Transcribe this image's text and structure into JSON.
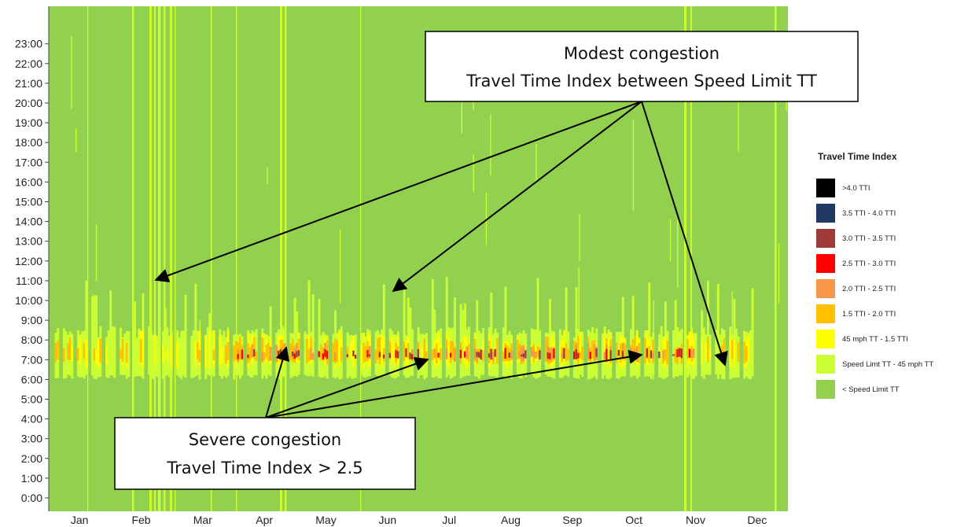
{
  "chart_data": {
    "type": "heatmap",
    "title": "",
    "xlabel": "",
    "ylabel": "",
    "x_categories": [
      "Jan",
      "Feb",
      "Mar",
      "Apr",
      "May",
      "Jun",
      "Jul",
      "Aug",
      "Sep",
      "Oct",
      "Nov",
      "Dec"
    ],
    "y_categories": [
      "0:00",
      "1:00",
      "2:00",
      "3:00",
      "4:00",
      "5:00",
      "6:00",
      "7:00",
      "8:00",
      "9:00",
      "10:00",
      "11:00",
      "12:00",
      "13:00",
      "14:00",
      "15:00",
      "16:00",
      "17:00",
      "18:00",
      "19:00",
      "20:00",
      "21:00",
      "22:00",
      "23:00"
    ],
    "legend": {
      "title": "Travel Time Index",
      "placement": "right",
      "items": [
        {
          "label": ">4.0 TTI",
          "color": "#000000"
        },
        {
          "label": "3.5 TTI - 4.0 TTI",
          "color": "#1f3864"
        },
        {
          "label": "3.0 TTI - 3.5 TTI",
          "color": "#9e3a38"
        },
        {
          "label": "2.5 TTI - 3.0 TTI",
          "color": "#ff0000"
        },
        {
          "label": "2.0 TTI - 2.5 TTI",
          "color": "#f79646"
        },
        {
          "label": "1.5 TTI - 2.0 TTI",
          "color": "#ffc000"
        },
        {
          "label": "45 mph TT - 1.5 TTI",
          "color": "#ffff00"
        },
        {
          "label": "Speed Limt TT - 45 mph TT",
          "color": "#ccff33"
        },
        {
          "label": "< Speed Limit TT",
          "color": "#92d050"
        }
      ]
    },
    "annotations": [
      {
        "line1": "Modest congestion",
        "line2": "Travel Time Index between Speed Limit TT"
      },
      {
        "line1": "Severe congestion",
        "line2": "Travel Time Index > 2.5"
      }
    ],
    "peak_window": {
      "start_hour": 6,
      "end_hour": 9,
      "weekday_pattern": "weekday morning peak, weekends free-flow"
    }
  }
}
